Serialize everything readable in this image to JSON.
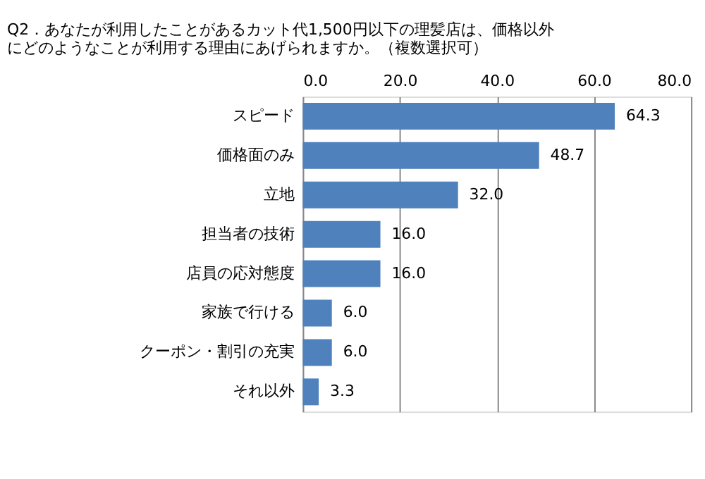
{
  "chart_data": {
    "type": "bar",
    "orientation": "horizontal",
    "title": "Q2．あなたが利用したことがあるカット代1,500円以下の理髪店は、価格以外にどのようなことが利用する理由にあげられますか。（複数選択可）",
    "categories": [
      "スピード",
      "価格面のみ",
      "立地",
      "担当者の技術",
      "店員の応対態度",
      "家族で行ける",
      "クーポン・割引の充実",
      "それ以外"
    ],
    "values": [
      64.3,
      48.7,
      32.0,
      16.0,
      16.0,
      6.0,
      6.0,
      3.3
    ],
    "value_labels": [
      "64.3",
      "48.7",
      "32.0",
      "16.0",
      "16.0",
      "6.0",
      "6.0",
      "3.3"
    ],
    "color": "#4f81bd",
    "grid": "x",
    "xlim": [
      0,
      80
    ],
    "xticks": [
      {
        "value": 0,
        "label": "0.0"
      },
      {
        "value": 20,
        "label": "20.0"
      },
      {
        "value": 40,
        "label": "40.0"
      },
      {
        "value": 60,
        "label": "60.0"
      },
      {
        "value": 80,
        "label": "80.0"
      }
    ]
  }
}
